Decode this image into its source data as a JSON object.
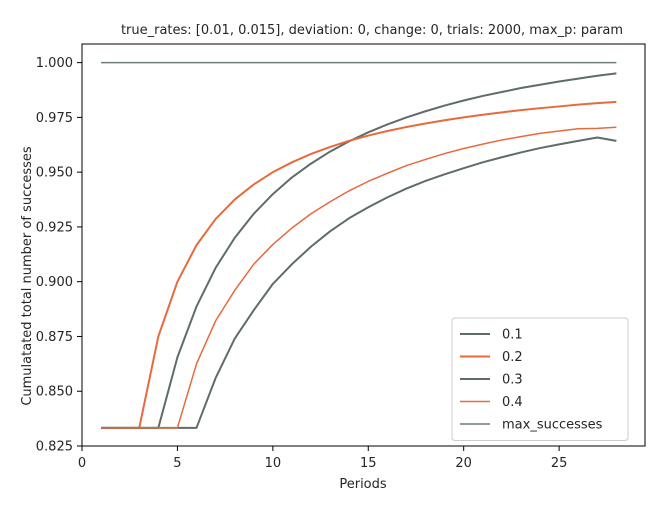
{
  "chart_data": {
    "type": "line",
    "title": "true_rates: [0.01, 0.015], deviation: 0, change: 0, trials: 2000, max_p: param",
    "xlabel": "Periods",
    "ylabel": "Cumulatated total number of successes",
    "xlim": [
      0,
      29.5
    ],
    "ylim": [
      0.825,
      1.0085
    ],
    "xticks": [
      0,
      5,
      10,
      15,
      20,
      25
    ],
    "yticks": [
      0.825,
      0.85,
      0.875,
      0.9,
      0.925,
      0.95,
      0.975,
      1.0
    ],
    "ytick_labels": [
      "0.825",
      "0.850",
      "0.875",
      "0.900",
      "0.925",
      "0.950",
      "0.975",
      "1.000"
    ],
    "grid": false,
    "legend_position": "lower right",
    "x": [
      1,
      2,
      3,
      4,
      5,
      6,
      7,
      8,
      9,
      10,
      11,
      12,
      13,
      14,
      15,
      16,
      17,
      18,
      19,
      20,
      21,
      22,
      23,
      24,
      25,
      26,
      27,
      28
    ],
    "series": [
      {
        "name": "0.1",
        "color": "#5f6b6d",
        "width": 2,
        "values": [
          0.8333,
          0.8333,
          0.8333,
          0.8333,
          0.8655,
          0.8887,
          0.9063,
          0.92,
          0.931,
          0.94,
          0.9476,
          0.9539,
          0.9594,
          0.9641,
          0.9682,
          0.9718,
          0.975,
          0.9778,
          0.9804,
          0.9827,
          0.9848,
          0.9866,
          0.9884,
          0.9899,
          0.9914,
          0.9927,
          0.994,
          0.9951
        ]
      },
      {
        "name": "0.2",
        "color": "#e66a3c",
        "width": 2,
        "values": [
          0.8333,
          0.8333,
          0.8333,
          0.875,
          0.9,
          0.9167,
          0.9286,
          0.9375,
          0.9444,
          0.95,
          0.9545,
          0.9583,
          0.9615,
          0.9643,
          0.9667,
          0.9688,
          0.9706,
          0.9722,
          0.9737,
          0.975,
          0.9762,
          0.9773,
          0.9783,
          0.9792,
          0.98,
          0.9808,
          0.9815,
          0.9821
        ]
      },
      {
        "name": "0.3",
        "color": "#5f6b6d",
        "width": 2,
        "values": [
          0.8333,
          0.8333,
          0.8333,
          0.8333,
          0.8333,
          0.8333,
          0.856,
          0.874,
          0.887,
          0.899,
          0.908,
          0.916,
          0.923,
          0.929,
          0.934,
          0.9385,
          0.9425,
          0.946,
          0.949,
          0.9518,
          0.9545,
          0.9568,
          0.959,
          0.961,
          0.9627,
          0.9643,
          0.9658,
          0.9643
        ]
      },
      {
        "name": "0.4",
        "color": "#e66a3c",
        "width": 1.5,
        "values": [
          0.8333,
          0.8333,
          0.8333,
          0.8333,
          0.8333,
          0.8625,
          0.8821,
          0.896,
          0.908,
          0.917,
          0.9245,
          0.931,
          0.9365,
          0.9415,
          0.9458,
          0.9495,
          0.953,
          0.9558,
          0.9585,
          0.9608,
          0.9628,
          0.9647,
          0.9662,
          0.9677,
          0.9688,
          0.9698,
          0.97,
          0.9705
        ]
      },
      {
        "name": "max_successes",
        "color": "#6f7c7e",
        "width": 1.5,
        "values": [
          1,
          1,
          1,
          1,
          1,
          1,
          1,
          1,
          1,
          1,
          1,
          1,
          1,
          1,
          1,
          1,
          1,
          1,
          1,
          1,
          1,
          1,
          1,
          1,
          1,
          1,
          1,
          1
        ]
      }
    ]
  }
}
